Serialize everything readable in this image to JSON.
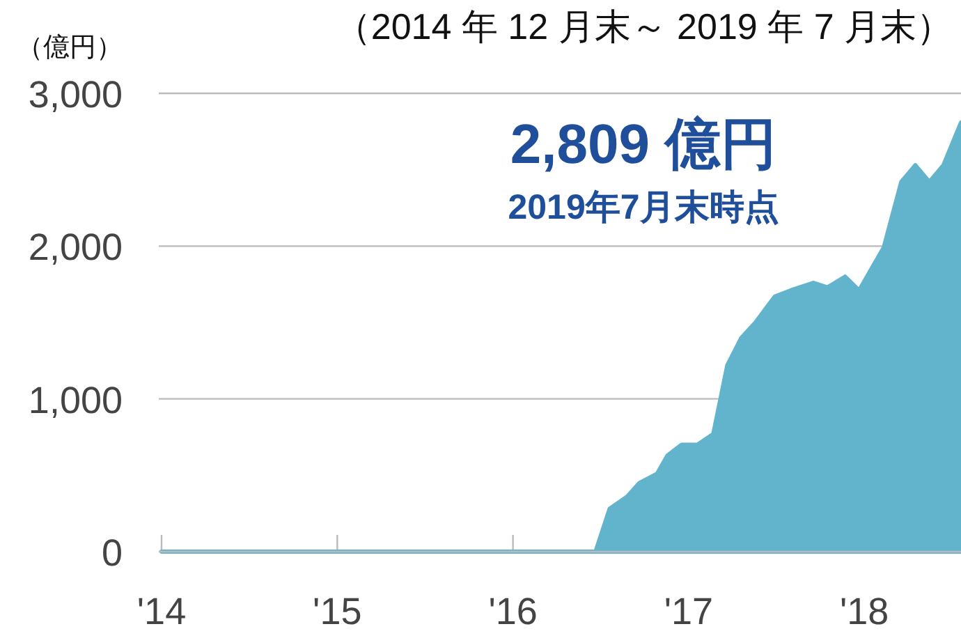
{
  "chart_data": {
    "type": "area",
    "subtitle": "（2014 年 12 月末～ 2019 年 7 月末）",
    "ylabel": "（億円）",
    "annotations": [
      "2,809 億円",
      "2019年7月末時点"
    ],
    "x": [
      2014,
      2016.47,
      2016.55,
      2016.65,
      2016.72,
      2016.82,
      2016.88,
      2016.96,
      2017.05,
      2017.14,
      2017.22,
      2017.3,
      2017.38,
      2017.49,
      2017.58,
      2017.71,
      2017.79,
      2017.89,
      2017.97,
      2018.05,
      2018.11,
      2018.21,
      2018.29,
      2018.37,
      2018.45,
      2018.55
    ],
    "series": [
      {
        "color": "#62b3cc",
        "values": [
          0,
          0,
          280,
          360,
          450,
          510,
          630,
          700,
          700,
          770,
          1220,
          1400,
          1500,
          1670,
          1710,
          1760,
          1730,
          1800,
          1710,
          1870,
          1990,
          2420,
          2530,
          2420,
          2530,
          2809
        ]
      }
    ],
    "xlim": [
      2014,
      2018.55
    ],
    "xticks": [
      {
        "value": 2014,
        "label": "'14"
      },
      {
        "value": 2015,
        "label": "'15"
      },
      {
        "value": 2016,
        "label": "'16"
      },
      {
        "value": 2017,
        "label": "'17"
      },
      {
        "value": 2018,
        "label": "'18"
      }
    ],
    "ylim": [
      0,
      3000
    ],
    "yticks": [
      {
        "value": 0,
        "label": "0"
      },
      {
        "value": 1000,
        "label": "1,000"
      },
      {
        "value": 2000,
        "label": "2,000"
      },
      {
        "value": 3000,
        "label": "3,000"
      }
    ],
    "grid": "y"
  }
}
